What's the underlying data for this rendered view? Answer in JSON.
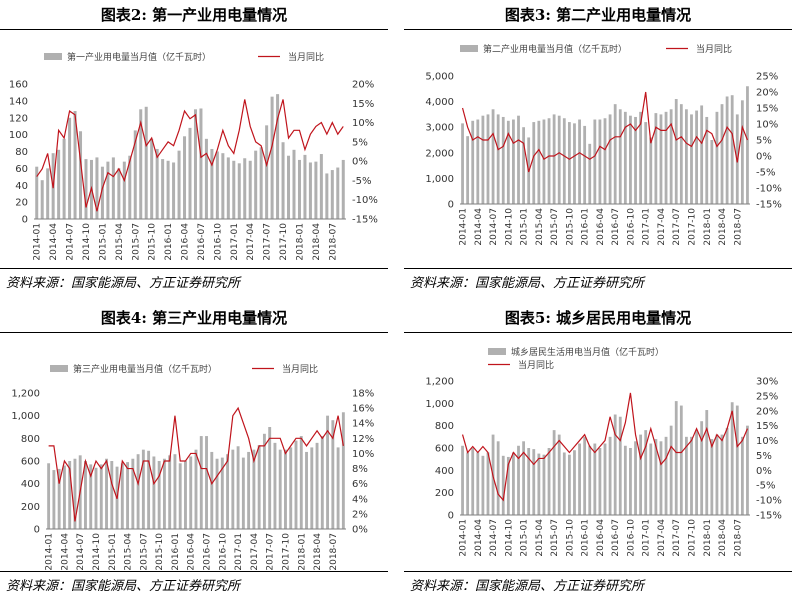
{
  "source_text": "资料来源：国家能源局、方正证券研究所",
  "panels": [
    {
      "title": "图表2:    第一产业用电量情况"
    },
    {
      "title": "图表3:    第二产业用电量情况"
    },
    {
      "title": "图表4:    第三产业用电量情况"
    },
    {
      "title": "图表5:    城乡居民用电量情况"
    }
  ],
  "colors": {
    "bar": "#b0b0b0",
    "line": "#c0141c",
    "axis": "#7f7f7f"
  },
  "chart_data": [
    {
      "type": "bar",
      "title": "第一产业用电量情况",
      "x_tick_labels": [
        "2014-01",
        "2014-04",
        "2014-07",
        "2014-10",
        "2015-01",
        "2015-04",
        "2015-07",
        "2015-10",
        "2016-01",
        "2016-04",
        "2016-07",
        "2016-10",
        "2017-01",
        "2017-04",
        "2017-07",
        "2017-10",
        "2018-01",
        "2018-04",
        "2018-07"
      ],
      "ylim": [
        0,
        160
      ],
      "y_ticks": [
        0,
        20,
        40,
        60,
        80,
        100,
        120,
        140,
        160
      ],
      "y2lim": [
        -15,
        20
      ],
      "y2_ticks": [
        "-15%",
        "-10%",
        "-5%",
        "0%",
        "5%",
        "10%",
        "15%",
        "20%"
      ],
      "legend": "top",
      "series": [
        {
          "name": "第一产业用电量当月值（亿千瓦时）",
          "type": "bar",
          "values": [
            62,
            46,
            60,
            78,
            82,
            95,
            120,
            128,
            104,
            71,
            70,
            73,
            62,
            68,
            73,
            60,
            68,
            75,
            105,
            130,
            133,
            95,
            83,
            71,
            69,
            67,
            81,
            98,
            108,
            130,
            131,
            95,
            83,
            80,
            78,
            73,
            69,
            66,
            72,
            69,
            81,
            85,
            111,
            145,
            148,
            91,
            75,
            82,
            70,
            76,
            67,
            68,
            77,
            54,
            58,
            61,
            70
          ]
        },
        {
          "name": "当月同比",
          "type": "line",
          "axis": "right",
          "values": [
            -4,
            -2,
            2,
            -7,
            8,
            6,
            13,
            12,
            0,
            -12,
            -7,
            -13,
            -7,
            -3,
            -4,
            -2,
            -5,
            0,
            5,
            10,
            4,
            6,
            1,
            3,
            5,
            4,
            8,
            13,
            11,
            12,
            1,
            2,
            -1,
            3,
            8,
            4,
            2,
            8,
            16,
            9,
            5,
            4,
            -1,
            4,
            11,
            16,
            6,
            8,
            8,
            3,
            7,
            9,
            10,
            7,
            10,
            7,
            9
          ]
        }
      ]
    },
    {
      "type": "bar",
      "title": "第二产业用电量情况",
      "x_tick_labels": [
        "2014-01",
        "2014-04",
        "2014-07",
        "2014-10",
        "2015-01",
        "2015-04",
        "2015-07",
        "2015-10",
        "2016-01",
        "2016-04",
        "2016-07",
        "2016-10",
        "2017-01",
        "2017-04",
        "2017-07",
        "2017-10",
        "2018-01",
        "2018-04",
        "2018-07"
      ],
      "ylim": [
        0,
        5000
      ],
      "y_ticks": [
        "0",
        "1,000",
        "2,000",
        "3,000",
        "4,000",
        "5,000"
      ],
      "y2lim": [
        -15,
        25
      ],
      "y2_ticks": [
        "-15%",
        "-10%",
        "-5%",
        "0%",
        "5%",
        "10%",
        "15%",
        "20%",
        "25%"
      ],
      "legend": "top",
      "series": [
        {
          "name": "第二产业用电量当月值（亿千瓦时）",
          "type": "bar",
          "values": [
            3150,
            2650,
            3250,
            3300,
            3450,
            3500,
            3700,
            3500,
            3400,
            3250,
            3300,
            3450,
            3000,
            2600,
            3200,
            3250,
            3300,
            3350,
            3500,
            3450,
            3350,
            3200,
            3150,
            3300,
            3050,
            2350,
            3300,
            3300,
            3350,
            3500,
            3900,
            3700,
            3600,
            3450,
            3400,
            3600,
            3200,
            2600,
            3550,
            3500,
            3600,
            3700,
            4100,
            3900,
            3700,
            3500,
            3650,
            3850,
            3400,
            2500,
            3600,
            3900,
            4200,
            4250,
            3500,
            4050,
            4600
          ]
        },
        {
          "name": "当月同比",
          "type": "line",
          "axis": "right",
          "values": [
            15,
            9,
            5,
            6,
            5,
            5,
            7,
            2,
            3,
            7,
            4,
            5,
            4,
            -5,
            0,
            2,
            -1,
            0,
            0,
            1,
            0,
            -1,
            0,
            1,
            0,
            -1,
            0,
            3,
            2,
            5,
            6,
            6,
            9,
            10,
            8,
            10,
            20,
            4,
            9,
            8,
            8,
            10,
            5,
            6,
            4,
            3,
            6,
            4,
            8,
            7,
            3,
            5,
            9,
            7,
            -2,
            9,
            5
          ]
        }
      ]
    },
    {
      "type": "bar",
      "title": "第三产业用电量情况",
      "x_tick_labels": [
        "2014-01",
        "2014-04",
        "2014-07",
        "2014-10",
        "2015-01",
        "2015-04",
        "2015-07",
        "2015-10",
        "2016-01",
        "2016-04",
        "2016-07",
        "2016-10",
        "2017-01",
        "2017-04",
        "2017-07",
        "2017-10",
        "2018-01",
        "2018-04",
        "2018-07"
      ],
      "ylim": [
        0,
        1200
      ],
      "y_ticks": [
        "0",
        "200",
        "400",
        "600",
        "800",
        "1,000",
        "1,200"
      ],
      "y2lim": [
        0,
        18
      ],
      "y2_ticks": [
        "0%",
        "2%",
        "4%",
        "6%",
        "8%",
        "10%",
        "12%",
        "14%",
        "16%",
        "18%"
      ],
      "legend": "top",
      "series": [
        {
          "name": "第三产业用电量当月值（亿千瓦时）",
          "type": "bar",
          "values": [
            580,
            520,
            530,
            560,
            600,
            620,
            650,
            600,
            570,
            540,
            570,
            620,
            600,
            550,
            580,
            590,
            620,
            660,
            700,
            690,
            640,
            600,
            620,
            650,
            660,
            580,
            600,
            640,
            700,
            820,
            820,
            680,
            620,
            630,
            660,
            700,
            730,
            630,
            680,
            700,
            740,
            840,
            900,
            760,
            700,
            700,
            720,
            780,
            820,
            680,
            720,
            760,
            820,
            1000,
            960,
            720,
            1030
          ]
        },
        {
          "name": "当月同比",
          "type": "line",
          "axis": "right",
          "values": [
            11,
            11,
            6,
            9,
            8,
            1,
            5,
            9,
            7,
            9,
            8,
            9,
            6,
            4,
            9,
            8,
            8,
            6,
            9,
            9,
            6,
            7,
            9,
            9,
            15,
            9,
            9,
            10,
            10,
            8,
            8,
            6,
            7,
            8,
            9,
            15,
            16,
            14,
            12,
            9,
            11,
            11,
            12,
            12,
            12,
            10,
            11,
            12,
            12,
            11,
            12,
            13,
            12,
            13,
            12,
            15,
            11
          ]
        }
      ]
    },
    {
      "type": "bar",
      "title": "城乡居民用电量情况",
      "x_tick_labels": [
        "2014-01",
        "2014-04",
        "2014-07",
        "2014-10",
        "2015-01",
        "2015-04",
        "2015-07",
        "2015-10",
        "2016-01",
        "2016-04",
        "2016-07",
        "2016-10",
        "2017-01",
        "2017-04",
        "2017-07",
        "2017-10",
        "2018-01",
        "2018-04",
        "2018-07"
      ],
      "ylim": [
        0,
        1200
      ],
      "y_ticks": [
        "0",
        "200",
        "400",
        "600",
        "800",
        "1,000",
        "1,200"
      ],
      "y2lim": [
        -15,
        30
      ],
      "y2_ticks": [
        "-15%",
        "-10%",
        "-5%",
        "0%",
        "5%",
        "10%",
        "15%",
        "20%",
        "25%",
        "30%"
      ],
      "legend": "top-left",
      "series": [
        {
          "name": "城乡居民生活用电当月值（亿千瓦时）",
          "type": "bar",
          "values": [
            620,
            560,
            600,
            560,
            530,
            560,
            720,
            660,
            530,
            520,
            560,
            620,
            660,
            600,
            590,
            550,
            540,
            600,
            760,
            720,
            560,
            540,
            580,
            640,
            700,
            620,
            640,
            600,
            640,
            700,
            900,
            880,
            620,
            600,
            660,
            720,
            760,
            640,
            680,
            660,
            700,
            800,
            1020,
            980,
            700,
            700,
            760,
            840,
            940,
            680,
            720,
            720,
            780,
            1010,
            980,
            700,
            800
          ]
        },
        {
          "name": "当月同比",
          "type": "line",
          "axis": "right",
          "values": [
            12,
            6,
            8,
            6,
            8,
            6,
            -2,
            -8,
            -10,
            2,
            6,
            4,
            6,
            4,
            2,
            4,
            4,
            6,
            8,
            10,
            8,
            6,
            8,
            10,
            12,
            8,
            6,
            8,
            10,
            18,
            12,
            10,
            16,
            26,
            12,
            4,
            8,
            14,
            8,
            2,
            4,
            8,
            6,
            6,
            8,
            10,
            14,
            10,
            14,
            8,
            12,
            10,
            14,
            20,
            8,
            10,
            14
          ]
        }
      ]
    }
  ]
}
